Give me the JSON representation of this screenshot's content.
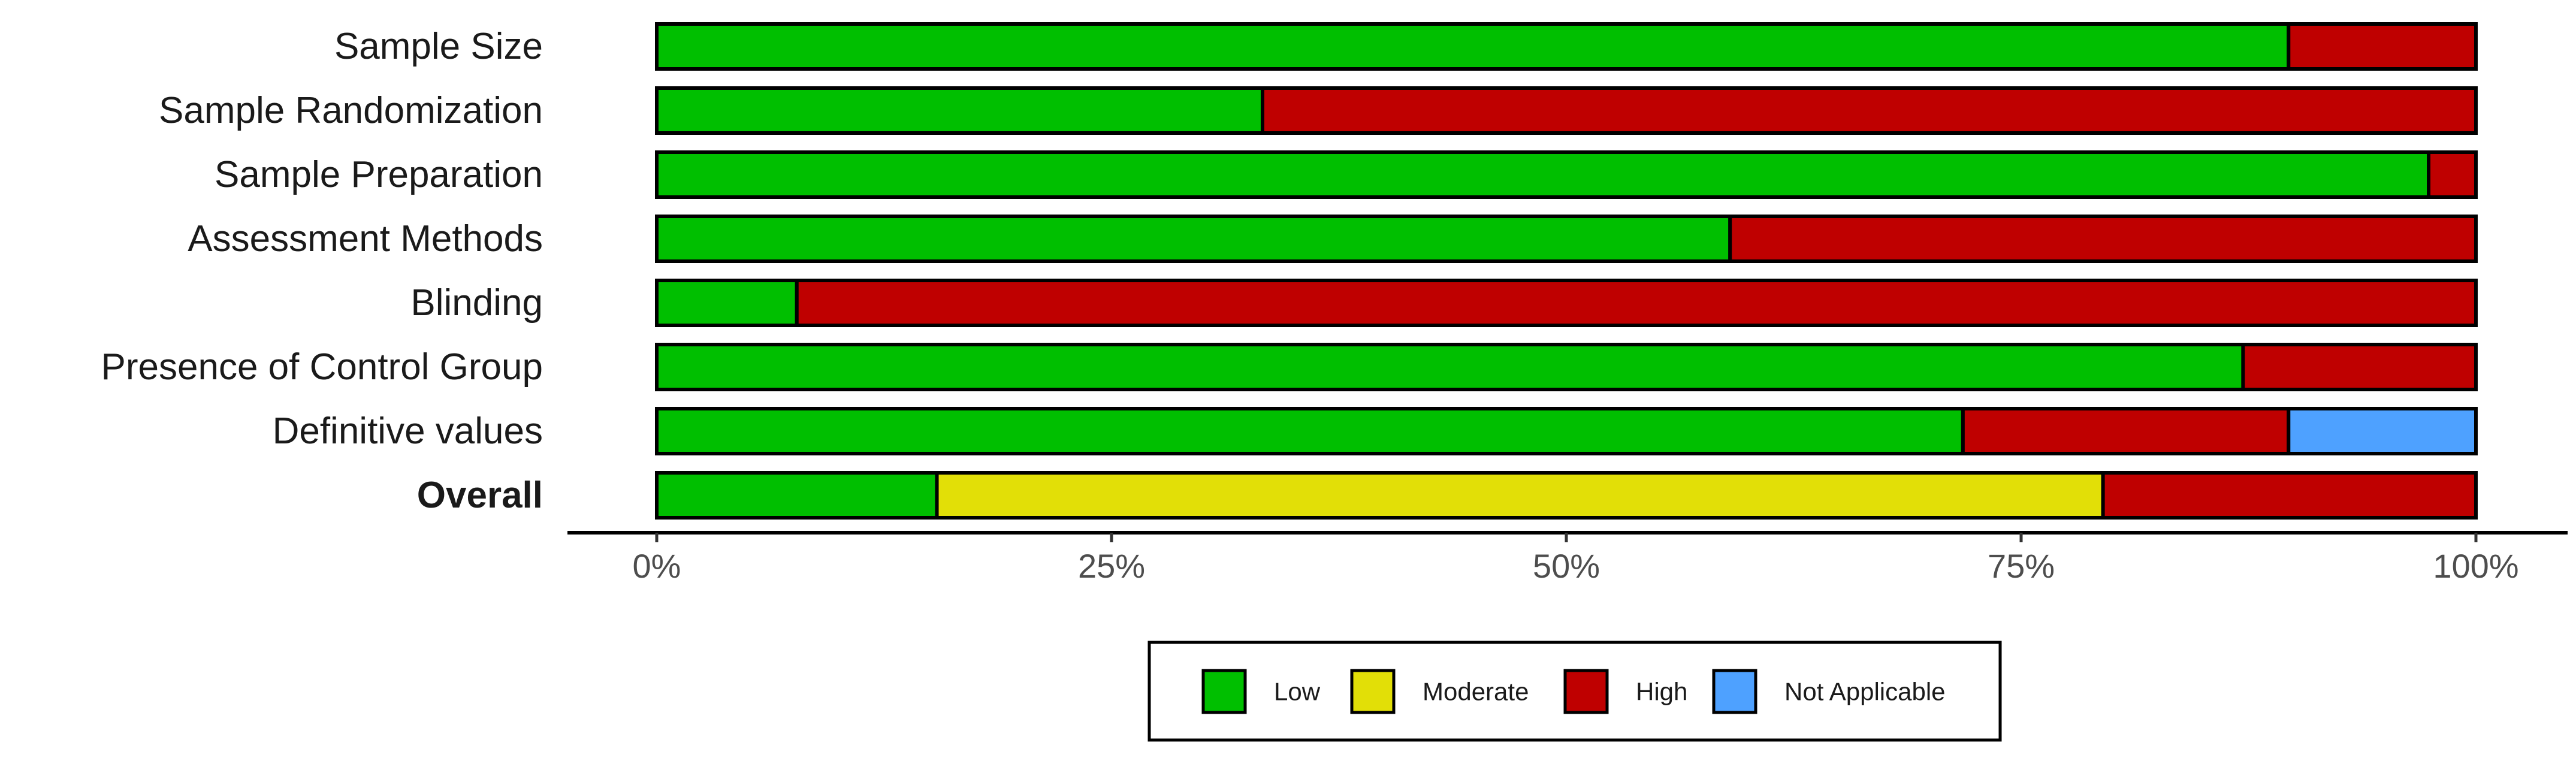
{
  "chart_data": {
    "type": "bar",
    "orientation": "horizontal",
    "stacking": "percent",
    "categories": [
      "Sample Size",
      "Sample Randomization",
      "Sample Preparation",
      "Assessment Methods",
      "Blinding",
      "Presence of Control Group",
      "Definitive values",
      "Overall"
    ],
    "bold_categories": [
      "Overall"
    ],
    "series": [
      {
        "name": "Low",
        "color": "#00BF00",
        "values": [
          89.7,
          33.3,
          97.4,
          59.0,
          7.7,
          87.2,
          71.8,
          15.4
        ]
      },
      {
        "name": "Moderate",
        "color": "#E2DF07",
        "values": [
          0,
          0,
          0,
          0,
          0,
          0,
          0,
          64.1
        ]
      },
      {
        "name": "High",
        "color": "#BF0000",
        "values": [
          10.3,
          66.7,
          2.6,
          41.0,
          92.3,
          12.8,
          17.9,
          20.5
        ]
      },
      {
        "name": "Not Applicable",
        "color": "#4EA1FF",
        "values": [
          0,
          0,
          0,
          0,
          0,
          0,
          10.3,
          0
        ]
      }
    ],
    "xlim": [
      0,
      100
    ],
    "xticks": [
      "0%",
      "25%",
      "50%",
      "75%",
      "100%"
    ],
    "xtick_values": [
      0,
      25,
      50,
      75,
      100
    ],
    "legend_position": "bottom",
    "grid": false
  }
}
